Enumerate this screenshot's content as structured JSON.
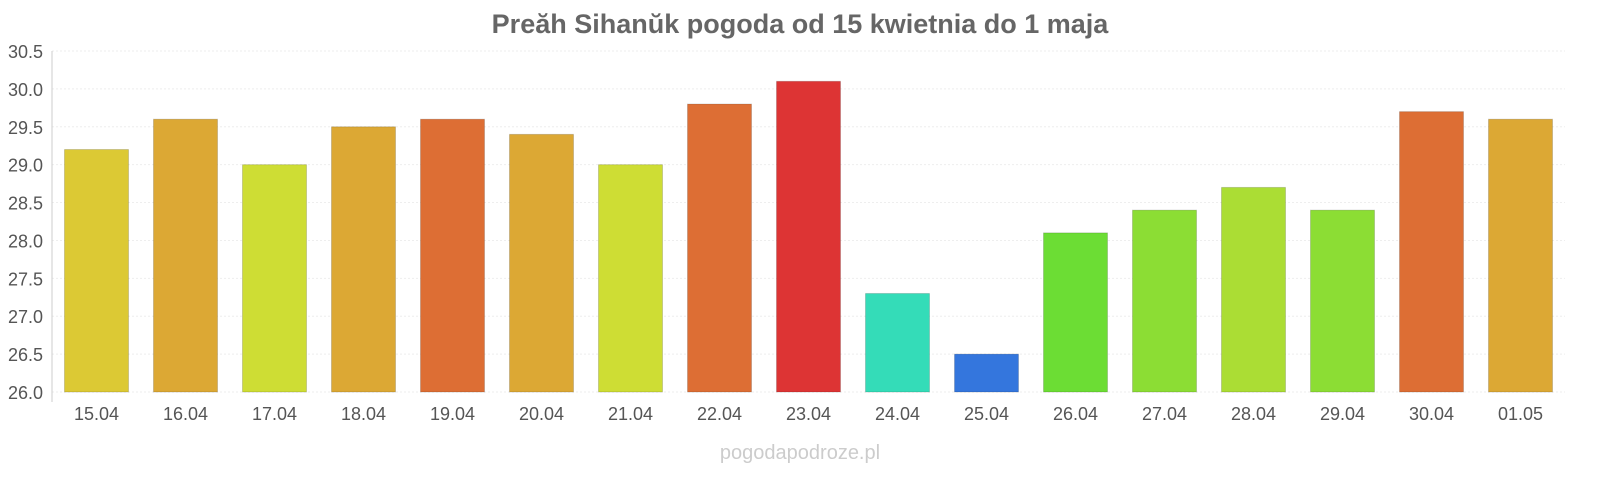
{
  "chart_data": {
    "type": "bar",
    "title": "Preăh Sihanŭk pogoda od 15 kwietnia do 1 maja",
    "xlabel": "",
    "ylabel": "",
    "ylim": [
      26.0,
      30.5
    ],
    "yticks": [
      "26.0",
      "26.5",
      "27.0",
      "27.5",
      "28.0",
      "28.5",
      "29.0",
      "29.5",
      "30.0",
      "30.5"
    ],
    "grid": true,
    "categories": [
      "15.04",
      "16.04",
      "17.04",
      "18.04",
      "19.04",
      "20.04",
      "21.04",
      "22.04",
      "23.04",
      "24.04",
      "25.04",
      "26.04",
      "27.04",
      "28.04",
      "29.04",
      "30.04",
      "01.05"
    ],
    "values": [
      29.2,
      29.6,
      29.0,
      29.5,
      29.6,
      29.4,
      29.0,
      29.8,
      30.1,
      27.3,
      26.5,
      28.1,
      28.4,
      28.7,
      28.4,
      29.7,
      29.6
    ],
    "colors": [
      "#dcc934",
      "#dca834",
      "#cedd34",
      "#dca834",
      "#dd6e34",
      "#dca834",
      "#cedd34",
      "#dd6e34",
      "#dd3434",
      "#34dcb8",
      "#3476dd",
      "#6cdd34",
      "#8cdd34",
      "#abdd34",
      "#8cdd34",
      "#dd6e34",
      "#dca834"
    ]
  },
  "watermark": "pogodapodroze.pl"
}
